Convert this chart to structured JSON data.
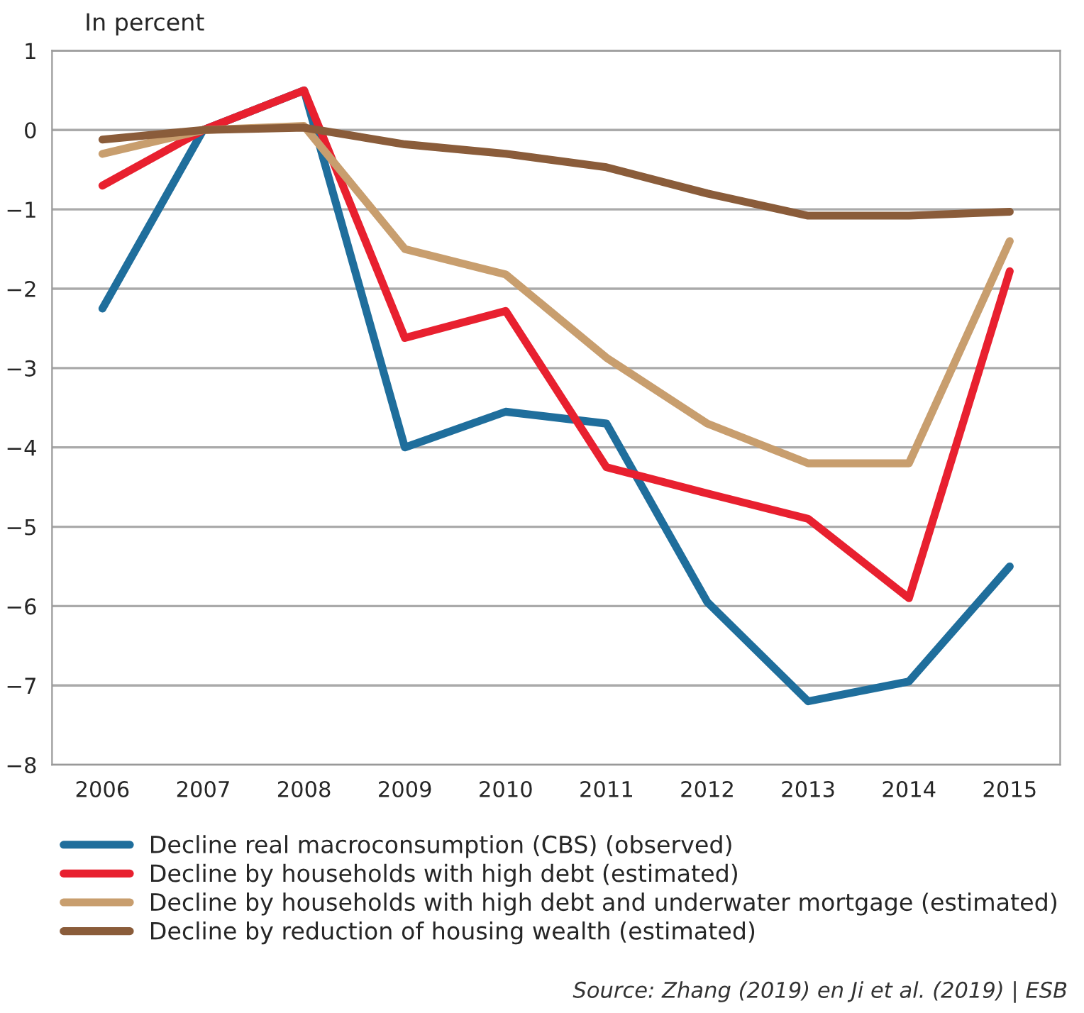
{
  "chart_data": {
    "type": "line",
    "ylabel": "In percent",
    "categories": [
      "2006",
      "2007",
      "2008",
      "2009",
      "2010",
      "2011",
      "2012",
      "2013",
      "2014",
      "2015"
    ],
    "series": [
      {
        "name": "Decline real macroconsumption (CBS) (observed)",
        "color": "#1f6e9c",
        "values": [
          -2.25,
          0,
          0.5,
          -4.0,
          -3.55,
          -3.7,
          -5.95,
          -7.2,
          -6.95,
          -5.5
        ]
      },
      {
        "name": "Decline by households with high debt (estimated)",
        "color": "#e8202f",
        "values": [
          -0.7,
          0,
          0.5,
          -2.62,
          -2.28,
          -4.25,
          -4.58,
          -4.9,
          -5.9,
          -1.78
        ]
      },
      {
        "name": "Decline by households with high debt and underwater mortgage (estimated)",
        "color": "#c89e6e",
        "values": [
          -0.3,
          0,
          0.05,
          -1.5,
          -1.82,
          -2.87,
          -3.7,
          -4.2,
          -4.2,
          -1.4
        ]
      },
      {
        "name": "Decline by reduction of housing wealth (estimated)",
        "color": "#8a5c3a",
        "values": [
          -0.12,
          0,
          0.03,
          -0.18,
          -0.3,
          -0.47,
          -0.8,
          -1.08,
          -1.08,
          -1.03
        ]
      }
    ],
    "ylim": [
      -8,
      1
    ],
    "yticks": [
      1,
      0,
      {
        "value": -1,
        "label": "−1"
      },
      {
        "value": -2,
        "label": "−2"
      },
      {
        "value": -3,
        "label": "−3"
      },
      {
        "value": -4,
        "label": "−4"
      },
      {
        "value": -5,
        "label": "−5"
      },
      {
        "value": -6,
        "label": "−6"
      },
      {
        "value": -7,
        "label": "−7"
      },
      {
        "value": -8,
        "label": "−8"
      }
    ],
    "grid": "y",
    "legend": "bottom",
    "marker": "none",
    "line_style": "solid",
    "annotations": [
      "Source: Zhang (2019) en Ji et al. (2019) | ESB"
    ]
  }
}
